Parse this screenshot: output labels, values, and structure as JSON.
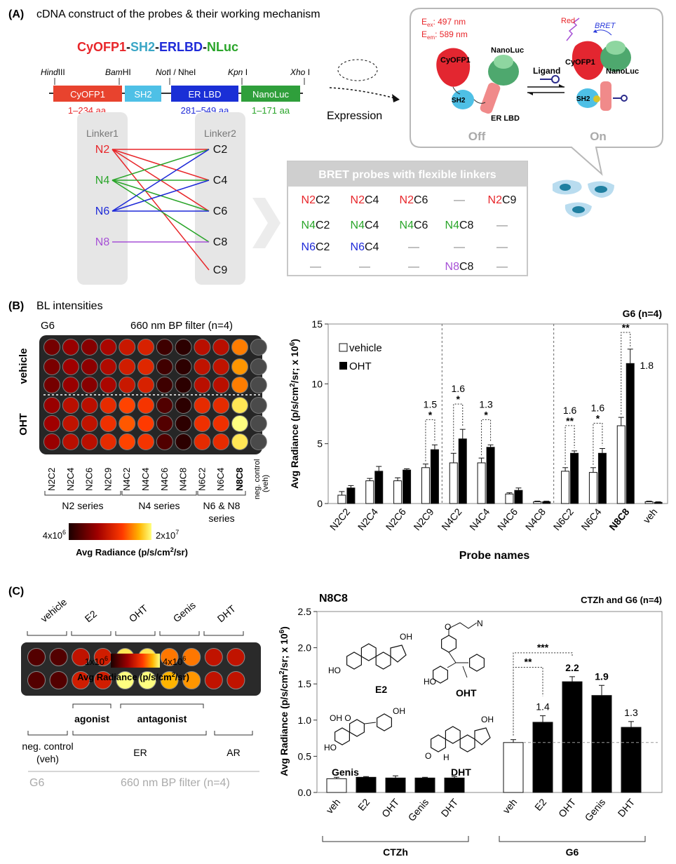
{
  "panelA": {
    "label": "(A)",
    "title": "cDNA construct of the probes & their working mechanism",
    "construct_parts": [
      {
        "text": "CyOFP1",
        "color": "#e8262a"
      },
      {
        "text": "-",
        "color": "#111111"
      },
      {
        "text": "SH2",
        "color": "#3aa6c6"
      },
      {
        "text": "-",
        "color": "#111111"
      },
      {
        "text": "ERLBD",
        "color": "#1e2ad8"
      },
      {
        "text": "-",
        "color": "#111111"
      },
      {
        "text": "NLuc",
        "color": "#2aa52a"
      }
    ],
    "sites": [
      {
        "italic": "Hind",
        "rest": "III"
      },
      {
        "italic": "Bam",
        "rest": "HI"
      },
      {
        "italic": "Not",
        "rest": "I / NheI"
      },
      {
        "italic": "Kpn",
        "rest": " I"
      },
      {
        "italic": "Xho",
        "rest": " I"
      }
    ],
    "blocks": [
      {
        "label": "CyOFP1",
        "color": "#e8432e"
      },
      {
        "label": "SH2",
        "color": "#4ec0e6"
      },
      {
        "label": "ER LBD",
        "color": "#1a2fd6"
      },
      {
        "label": "NanoLuc",
        "color": "#2f9f3b"
      }
    ],
    "aa": [
      {
        "text": "1–234 aa",
        "color": "#e8262a"
      },
      {
        "text": "281–549 aa",
        "color": "#1e2ad8"
      },
      {
        "text": "1–171 aa",
        "color": "#2aa52a"
      }
    ],
    "linker1": "Linker1",
    "linker2": "Linker2",
    "n_nodes": [
      {
        "name": "N2",
        "color": "#e8262a"
      },
      {
        "name": "N4",
        "color": "#2aa52a"
      },
      {
        "name": "N6",
        "color": "#1e2ad8"
      },
      {
        "name": "N8",
        "color": "#a650d6"
      }
    ],
    "c_nodes": [
      "C2",
      "C4",
      "C6",
      "C8",
      "C9"
    ],
    "connections": [
      {
        "n": "N2",
        "c": "C2"
      },
      {
        "n": "N2",
        "c": "C4"
      },
      {
        "n": "N2",
        "c": "C6"
      },
      {
        "n": "N2",
        "c": "C9"
      },
      {
        "n": "N4",
        "c": "C2"
      },
      {
        "n": "N4",
        "c": "C4"
      },
      {
        "n": "N4",
        "c": "C6"
      },
      {
        "n": "N4",
        "c": "C8"
      },
      {
        "n": "N6",
        "c": "C2"
      },
      {
        "n": "N6",
        "c": "C4"
      },
      {
        "n": "N6",
        "c": "C6"
      },
      {
        "n": "N8",
        "c": "C8"
      }
    ],
    "expression": "Expression",
    "mechanism": {
      "ex": "E",
      "ex_sub": "ex",
      "ex_val": ": 497 nm",
      "em": "E",
      "em_sub": "em",
      "em_val": ": 589 nm",
      "cyofp1": "CyOFP1",
      "nanoluc": "NanoLuc",
      "sh2": "SH2",
      "erlbd": "ER LBD",
      "ligand": "Ligand",
      "red": "Red",
      "bret": "BRET",
      "off": "Off",
      "on": "On"
    },
    "table": {
      "title": "BRET probes with flexible linkers",
      "rows": [
        [
          {
            "n": "N2",
            "c": "C2"
          },
          {
            "n": "N2",
            "c": "C4"
          },
          {
            "n": "N2",
            "c": "C6"
          },
          {
            "dash": true
          },
          {
            "n": "N2",
            "c": "C9"
          }
        ],
        [
          {
            "n": "N4",
            "c": "C2"
          },
          {
            "n": "N4",
            "c": "C4"
          },
          {
            "n": "N4",
            "c": "C6"
          },
          {
            "n": "N4",
            "c": "C8"
          },
          {
            "dash": true
          }
        ],
        [
          {
            "n": "N6",
            "c": "C2"
          },
          {
            "n": "N6",
            "c": "C4"
          },
          {
            "dash": true
          },
          {
            "dash": true
          },
          {
            "dash": true
          }
        ],
        [
          {
            "dash": true
          },
          {
            "dash": true
          },
          {
            "dash": true
          },
          {
            "n": "N8",
            "c": "C8"
          },
          {
            "dash": true
          }
        ]
      ],
      "dash": "—"
    }
  },
  "panelB": {
    "label": "(B)",
    "title": "BL intensities",
    "plate_title_left": "G6",
    "plate_title_right": "660 nm BP filter (n=4)",
    "row_labels": [
      "vehicle",
      "OHT"
    ],
    "columns": [
      "N2C2",
      "N2C4",
      "N2C6",
      "N2C9",
      "N4C2",
      "N4C4",
      "N4C6",
      "N4C8",
      "N6C2",
      "N6C4",
      "N8C8",
      "neg. control (veh)"
    ],
    "well_intensity": {
      "vehicle": [
        0.25,
        0.35,
        0.3,
        0.4,
        0.5,
        0.55,
        0.1,
        0.05,
        0.45,
        0.45,
        0.8,
        0.0
      ],
      "OHT": [
        0.35,
        0.45,
        0.45,
        0.6,
        0.7,
        0.65,
        0.15,
        0.05,
        0.6,
        0.6,
        1.0,
        0.0
      ]
    },
    "series_labels": [
      "N2 series",
      "N4 series",
      "N6 & N8 series"
    ],
    "colorbar_min": "4x10",
    "colorbar_min_exp": "6",
    "colorbar_max": "2x10",
    "colorbar_max_exp": "7",
    "colorbar_label": "Avg Radiance (p/s/cm",
    "colorbar_label_sup": "2",
    "colorbar_label_end": "/sr)"
  },
  "panelC": {
    "label": "(C)",
    "groups": [
      "vehicle",
      "E2",
      "OHT",
      "Genis",
      "DHT"
    ],
    "well_intensity": [
      [
        0.15,
        0.15,
        0.45,
        0.5,
        0.95,
        0.95,
        0.75,
        0.75,
        0.45,
        0.45
      ],
      [
        0.15,
        0.15,
        0.5,
        0.5,
        1.0,
        1.0,
        0.85,
        0.8,
        0.45,
        0.45
      ]
    ],
    "role_labels": [
      "agonist",
      "antagonist"
    ],
    "bottom_labels": [
      "neg. control (veh)",
      "ER",
      "AR"
    ],
    "footer_left": "G6",
    "footer_right": "660 nm BP filter (n=4)",
    "colorbar_min": "1x10",
    "colorbar_min_exp": "6",
    "colorbar_max": "4x10",
    "colorbar_max_exp": "6",
    "colorbar_label": "Avg Radiance (p/s/cm",
    "colorbar_label_sup": "2",
    "colorbar_label_end": "/sr)",
    "structures": [
      "E2",
      "OHT",
      "Genis",
      "DHT"
    ]
  },
  "chart_data": [
    {
      "type": "bar",
      "title": "G6 (n=4)",
      "xlabel": "Probe names",
      "ylabel": "Avg Radiance (p/s/cm2/sr; x 106)",
      "ylim": [
        0,
        15
      ],
      "yticks": [
        0,
        5,
        10,
        15
      ],
      "categories": [
        "N2C2",
        "N2C4",
        "N2C6",
        "N2C9",
        "N4C2",
        "N4C4",
        "N4C6",
        "N4C8",
        "N6C2",
        "N6C4",
        "N8C8",
        "veh"
      ],
      "series": [
        {
          "name": "vehicle",
          "color": "#ffffff",
          "values": [
            0.7,
            1.9,
            1.9,
            3.0,
            3.4,
            3.4,
            0.8,
            0.15,
            2.7,
            2.6,
            6.5,
            0.15
          ],
          "errors": [
            0.3,
            0.2,
            0.25,
            0.3,
            0.8,
            0.4,
            0.1,
            0.05,
            0.3,
            0.4,
            0.7,
            0.05
          ]
        },
        {
          "name": "OHT",
          "color": "#000000",
          "values": [
            1.3,
            2.7,
            2.8,
            4.5,
            5.4,
            4.7,
            1.1,
            0.15,
            4.2,
            4.2,
            11.7,
            0.1
          ],
          "errors": [
            0.2,
            0.4,
            0.1,
            0.4,
            0.8,
            0.2,
            0.2,
            0.05,
            0.2,
            0.4,
            1.2,
            0.05
          ]
        }
      ],
      "annotations": [
        {
          "category": "N2C9",
          "ratio": "1.5",
          "sig": "*"
        },
        {
          "category": "N4C2",
          "ratio": "1.6",
          "sig": "*"
        },
        {
          "category": "N4C4",
          "ratio": "1.3",
          "sig": "*"
        },
        {
          "category": "N6C2",
          "ratio": "1.6",
          "sig": "**"
        },
        {
          "category": "N6C4",
          "ratio": "1.6",
          "sig": "*"
        },
        {
          "category": "N8C8",
          "ratio": "1.8",
          "sig": "**"
        }
      ],
      "legend": "top-left"
    },
    {
      "type": "bar",
      "title": "N8C8",
      "subtitle": "CTZh and G6 (n=4)",
      "ylabel": "Avg Radiance (p/s/cm2/sr; x 106)",
      "ylim": [
        0,
        2.5
      ],
      "yticks": [
        0.0,
        0.5,
        1.0,
        1.5,
        2.0,
        2.5
      ],
      "groups": [
        {
          "name": "CTZh",
          "categories": [
            "veh",
            "E2",
            "OHT",
            "Genis",
            "DHT"
          ],
          "values": [
            0.19,
            0.21,
            0.2,
            0.2,
            0.2
          ],
          "errors": [
            0.02,
            0.01,
            0.03,
            0.01,
            0.02
          ],
          "fills": [
            "#ffffff",
            "#000000",
            "#000000",
            "#000000",
            "#000000"
          ]
        },
        {
          "name": "G6",
          "categories": [
            "veh",
            "E2",
            "OHT",
            "Genis",
            "DHT"
          ],
          "values": [
            0.69,
            0.97,
            1.53,
            1.34,
            0.9
          ],
          "errors": [
            0.04,
            0.09,
            0.07,
            0.14,
            0.08
          ],
          "fills": [
            "#ffffff",
            "#000000",
            "#000000",
            "#000000",
            "#000000"
          ]
        }
      ],
      "ratio_labels": [
        {
          "category": "E2",
          "text": "1.4",
          "bold": false
        },
        {
          "category": "OHT",
          "text": "2.2",
          "bold": true
        },
        {
          "category": "Genis",
          "text": "1.9",
          "bold": true
        },
        {
          "category": "DHT",
          "text": "1.3",
          "bold": false
        }
      ],
      "significance": [
        {
          "from": "veh",
          "to": "E2",
          "sig": "**"
        },
        {
          "from": "veh",
          "to": "OHT",
          "sig": "***"
        }
      ]
    }
  ]
}
